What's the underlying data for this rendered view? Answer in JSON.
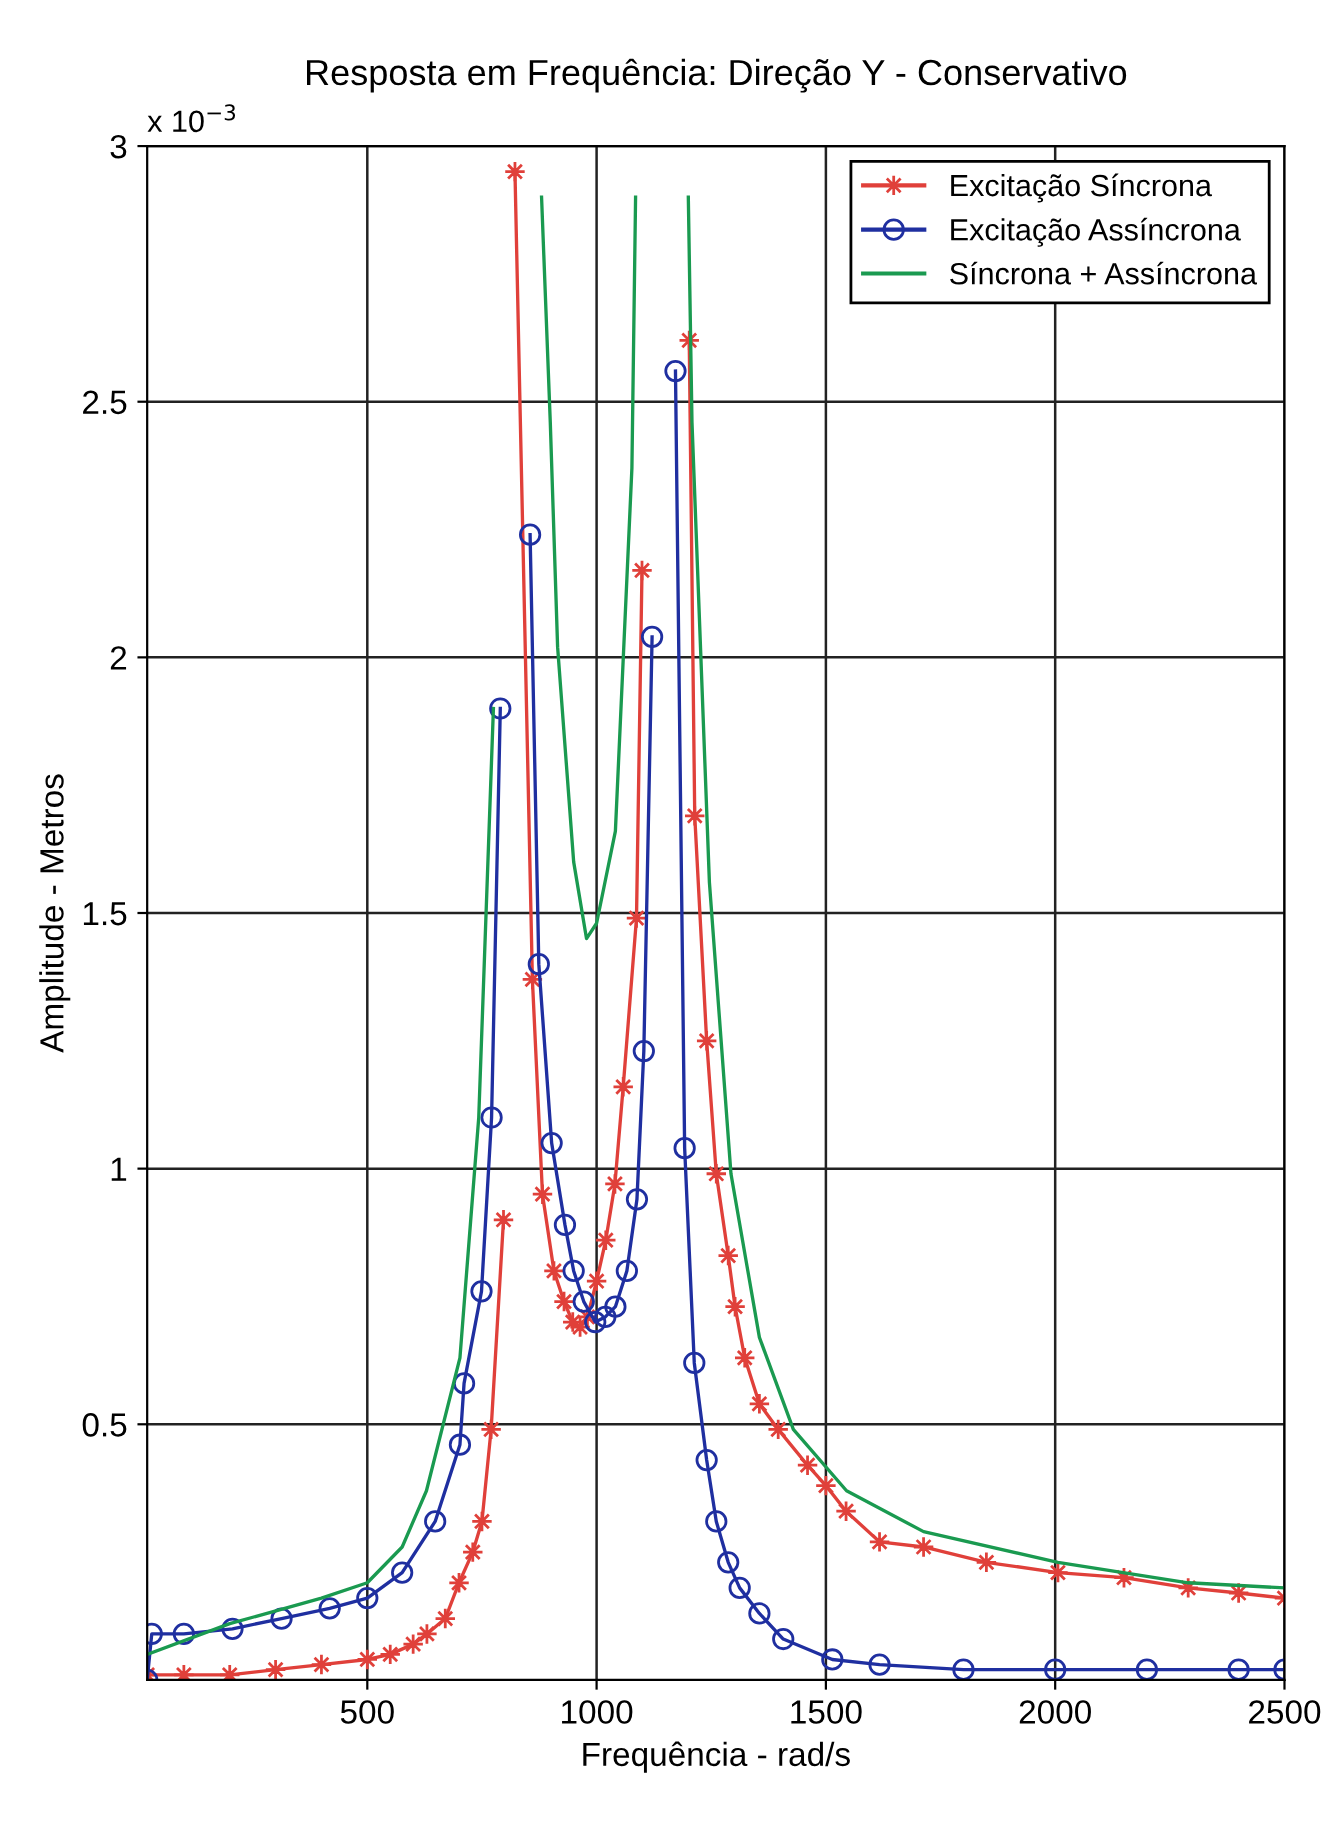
{
  "chart_data": {
    "type": "line",
    "title": "Resposta em Frequência: Direção Y - Conservativo",
    "xlabel": "Frequência - rad/s",
    "ylabel": "Amplitude - Metros",
    "annotations": [
      "x 10$^{−3}$"
    ],
    "xlim": [
      20,
      2500
    ],
    "xticks": [
      500,
      1000,
      1500,
      2000,
      2500
    ],
    "ylim": [
      0,
      3
    ],
    "yticks": [
      0.5,
      1,
      1.5,
      2,
      2.5,
      3
    ],
    "grid": true,
    "legend": "top right",
    "series": [
      {
        "name": "Excitação Síncrona",
        "color": "#e0403a",
        "marker": "star",
        "x": [
          20,
          100,
          200,
          300,
          400,
          500,
          550,
          600,
          630,
          670,
          700,
          730,
          750,
          770,
          797,
          812,
          822,
          860,
          882,
          907,
          929,
          948,
          964,
          980,
          1000,
          1020,
          1040,
          1058,
          1087,
          1099,
          1150,
          1202,
          1214,
          1240,
          1261,
          1287,
          1302,
          1323,
          1355,
          1396,
          1460,
          1500,
          1544,
          1617,
          1713,
          1850,
          2006,
          2150,
          2290,
          2400,
          2500
        ],
        "values": [
          0.01,
          0.01,
          0.01,
          0.02,
          0.03,
          0.04,
          0.05,
          0.07,
          0.09,
          0.12,
          0.19,
          0.25,
          0.31,
          0.49,
          0.9,
          null,
          2.95,
          1.37,
          0.95,
          0.8,
          0.74,
          0.7,
          0.69,
          0.71,
          0.78,
          0.86,
          0.97,
          1.16,
          1.49,
          2.17,
          null,
          2.62,
          1.69,
          1.25,
          0.99,
          0.83,
          0.73,
          0.63,
          0.54,
          0.49,
          0.42,
          0.38,
          0.33,
          0.27,
          0.26,
          0.23,
          0.21,
          0.2,
          0.18,
          0.17,
          0.16
        ]
      },
      {
        "name": "Excitação Assíncrona",
        "color": "#1f2fa0",
        "marker": "circle",
        "x": [
          20,
          30,
          100,
          206,
          313,
          418,
          500,
          576,
          648,
          702,
          711,
          749,
          771,
          790,
          820,
          855,
          874,
          902,
          931,
          950,
          972,
          997,
          1019,
          1041,
          1066,
          1088,
          1103,
          1121,
          1145,
          1172,
          1192,
          1213,
          1240,
          1261,
          1287,
          1312,
          1355,
          1407,
          1514,
          1617,
          1800,
          2000,
          2200,
          2400,
          2500
        ],
        "values": [
          0.0,
          0.09,
          0.09,
          0.1,
          0.12,
          0.14,
          0.16,
          0.21,
          0.31,
          0.46,
          0.58,
          0.76,
          1.1,
          1.9,
          null,
          2.24,
          1.4,
          1.05,
          0.89,
          0.8,
          0.74,
          0.7,
          0.71,
          0.73,
          0.8,
          0.94,
          1.23,
          2.04,
          null,
          2.56,
          1.04,
          0.62,
          0.43,
          0.31,
          0.23,
          0.18,
          0.13,
          0.08,
          0.04,
          0.03,
          0.02,
          0.02,
          0.02,
          0.02,
          0.02
        ]
      },
      {
        "name": "Síncrona + Assíncrona",
        "color": "#1a9a50",
        "marker": "none",
        "x": [
          20,
          200,
          400,
          500,
          576,
          629,
          702,
          743,
          775,
          820,
          880,
          899,
          915,
          950,
          978,
          1000,
          1041,
          1077,
          1085,
          1150,
          1200,
          1208,
          1246,
          1293,
          1355,
          1429,
          1545,
          1713,
          2006,
          2290,
          2500
        ],
        "values": [
          0.05,
          0.11,
          0.16,
          0.19,
          0.26,
          0.37,
          0.63,
          1.1,
          1.9,
          null,
          2.9,
          2.46,
          2.02,
          1.6,
          1.45,
          1.48,
          1.66,
          2.37,
          2.9,
          null,
          2.9,
          2.46,
          1.56,
          0.99,
          0.67,
          0.49,
          0.37,
          0.29,
          0.23,
          0.19,
          0.18
        ]
      }
    ]
  }
}
